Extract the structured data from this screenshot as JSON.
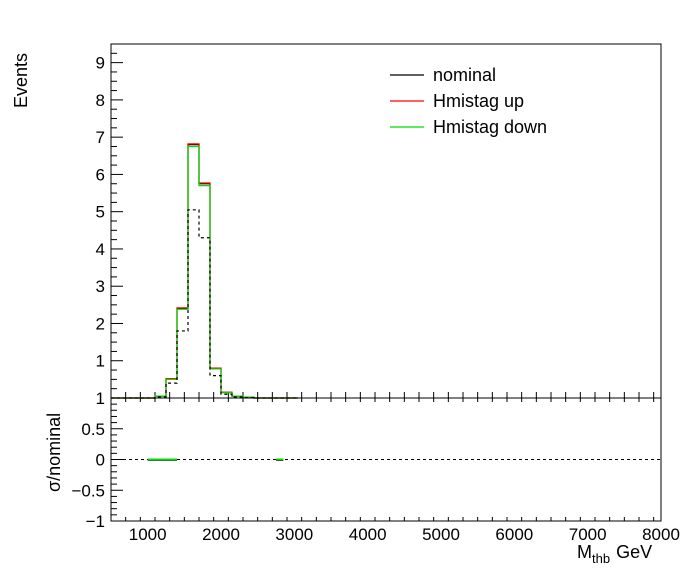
{
  "chart_data": [
    {
      "type": "line",
      "title": "",
      "xlabel": "M",
      "xlabel_subscript": "thb",
      "xlabel_unit": "GeV",
      "ylabel": "Events",
      "xlim": [
        500,
        8000
      ],
      "ylim": [
        0,
        9.5
      ],
      "y_ticks": [
        "1",
        "2",
        "3",
        "4",
        "5",
        "6",
        "7",
        "8",
        "9"
      ],
      "grid": false,
      "legend_position": "top-right",
      "bin_edges": [
        500,
        650,
        800,
        950,
        1100,
        1250,
        1400,
        1550,
        1700,
        1850,
        2000,
        2150,
        2300,
        2450,
        2600,
        2750,
        2900,
        3050
      ],
      "series": [
        {
          "name": "nominal",
          "color": "#000000",
          "values": [
            0,
            0,
            0,
            0,
            0.05,
            0.5,
            2.4,
            6.8,
            5.75,
            0.8,
            0.15,
            0.05,
            0.02,
            0,
            0,
            0,
            0
          ]
        },
        {
          "name": "Hmistag up",
          "color": "#ff0000",
          "values": [
            0,
            0,
            0,
            0,
            0.05,
            0.52,
            2.42,
            6.82,
            5.77,
            0.8,
            0.15,
            0.05,
            0.02,
            0,
            0,
            0,
            0
          ]
        },
        {
          "name": "Hmistag down",
          "color": "#00dd00",
          "values": [
            0,
            0,
            0,
            0,
            0.05,
            0.5,
            2.38,
            6.75,
            5.7,
            0.78,
            0.14,
            0.05,
            0.02,
            0,
            0,
            0,
            0
          ]
        },
        {
          "name": "",
          "color": "#000000",
          "dashed": true,
          "values": [
            0,
            0,
            0,
            0,
            0.03,
            0.4,
            1.8,
            5.05,
            4.3,
            0.6,
            0.1,
            0.03,
            0.01,
            0,
            0,
            0,
            0
          ]
        }
      ]
    },
    {
      "type": "scatter",
      "title": "",
      "xlabel": "M",
      "ylabel": "σ/nominal",
      "xlim": [
        500,
        8000
      ],
      "ylim": [
        -1,
        1
      ],
      "y_ticks": [
        "−1",
        "−0.5",
        "0",
        "0.5",
        "1"
      ],
      "x_ticks": [
        "1000",
        "2000",
        "3000",
        "4000",
        "5000",
        "6000",
        "7000",
        "8000"
      ],
      "reference_line": 0,
      "points": [
        {
          "x": 1200,
          "y": 0,
          "x_err": 200,
          "color": "#00dd00"
        },
        {
          "x": 2800,
          "y": 0,
          "x_err": 50,
          "color": "#00dd00"
        }
      ]
    }
  ]
}
